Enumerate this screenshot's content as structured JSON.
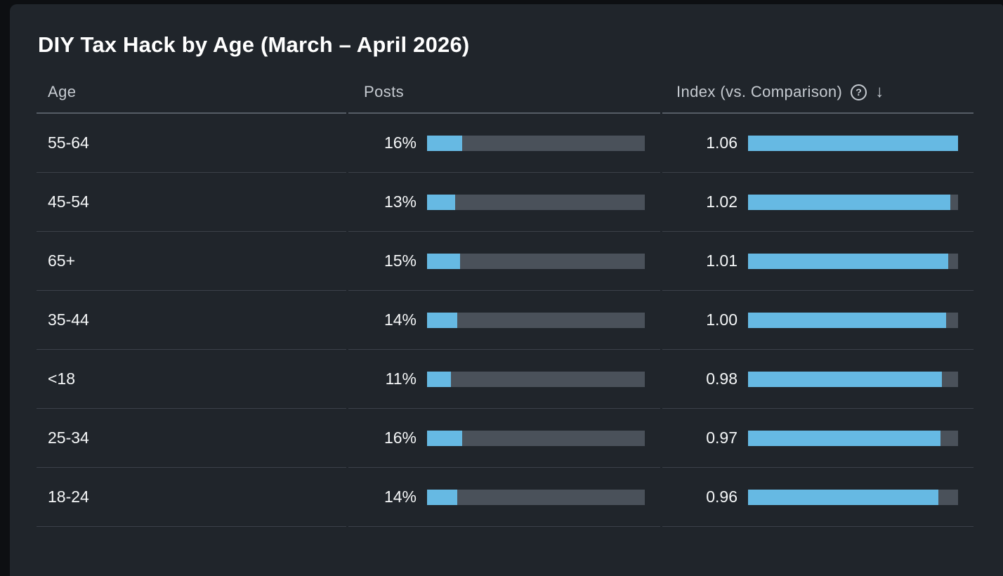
{
  "title": "DIY Tax Hack by Age (March – April 2026)",
  "columns": {
    "age": "Age",
    "posts": "Posts",
    "index": "Index (vs. Comparison)"
  },
  "icons": {
    "help_glyph": "?",
    "sort_glyph": "↓",
    "help_name": "help-circle-icon",
    "sort_name": "sort-descending-arrow-icon"
  },
  "colors": {
    "card_background": "#20252b",
    "outer_background": "#0d0f12",
    "bar_fill_blue": "#66b9e3",
    "bar_track_gray": "#4a515a",
    "header_text": "#c6cbd1",
    "body_text": "#f5f7f8"
  },
  "rows": [
    {
      "age": "55-64",
      "posts_label": "16%",
      "posts_pct": 16,
      "index_label": "1.06",
      "index": 1.06
    },
    {
      "age": "45-54",
      "posts_label": "13%",
      "posts_pct": 13,
      "index_label": "1.02",
      "index": 1.02
    },
    {
      "age": "65+",
      "posts_label": "15%",
      "posts_pct": 15,
      "index_label": "1.01",
      "index": 1.01
    },
    {
      "age": "35-44",
      "posts_label": "14%",
      "posts_pct": 14,
      "index_label": "1.00",
      "index": 1.0
    },
    {
      "age": "<18",
      "posts_label": "11%",
      "posts_pct": 11,
      "index_label": "0.98",
      "index": 0.98
    },
    {
      "age": "25-34",
      "posts_label": "16%",
      "posts_pct": 16,
      "index_label": "0.97",
      "index": 0.97
    },
    {
      "age": "18-24",
      "posts_label": "14%",
      "posts_pct": 14,
      "index_label": "0.96",
      "index": 0.96
    }
  ],
  "chart_data": {
    "type": "bar",
    "orientation": "horizontal",
    "title": "DIY Tax Hack by Age (March – April 2026)",
    "categories": [
      "55-64",
      "45-54",
      "65+",
      "35-44",
      "<18",
      "25-34",
      "18-24"
    ],
    "series": [
      {
        "name": "Posts",
        "unit": "%",
        "values": [
          16,
          13,
          15,
          14,
          11,
          16,
          14
        ],
        "axis_max": 100
      },
      {
        "name": "Index (vs. Comparison)",
        "values": [
          1.06,
          1.02,
          1.01,
          1.0,
          0.98,
          0.97,
          0.96
        ],
        "axis_max": 1.06
      }
    ],
    "sort": "Index descending",
    "legend_position": "none",
    "grid": false
  }
}
